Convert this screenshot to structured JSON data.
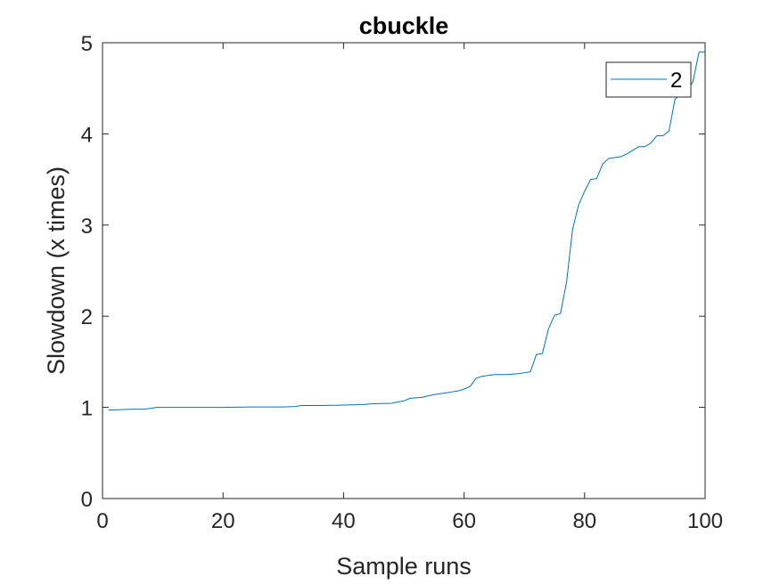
{
  "chart_data": {
    "type": "line",
    "title": "cbuckle",
    "xlabel": "Sample runs",
    "ylabel": "Slowdown (x times)",
    "xlim": [
      0,
      100
    ],
    "ylim": [
      0,
      5
    ],
    "xticks": [
      "0",
      "20",
      "40",
      "60",
      "80",
      "100"
    ],
    "yticks": [
      "0",
      "1",
      "2",
      "3",
      "4",
      "5"
    ],
    "grid": false,
    "legend_position": "top-right",
    "series": [
      {
        "name": "2",
        "color": "#0072BD",
        "points": [
          [
            1,
            0.97
          ],
          [
            3,
            0.975
          ],
          [
            5,
            0.98
          ],
          [
            7,
            0.98
          ],
          [
            8,
            0.99
          ],
          [
            9,
            1.0
          ],
          [
            12,
            1.0
          ],
          [
            16,
            1.0
          ],
          [
            20,
            1.0
          ],
          [
            25,
            1.005
          ],
          [
            30,
            1.005
          ],
          [
            32,
            1.01
          ],
          [
            33,
            1.02
          ],
          [
            36,
            1.02
          ],
          [
            40,
            1.025
          ],
          [
            43,
            1.03
          ],
          [
            45,
            1.04
          ],
          [
            48,
            1.045
          ],
          [
            49,
            1.06
          ],
          [
            50,
            1.07
          ],
          [
            51,
            1.1
          ],
          [
            53,
            1.11
          ],
          [
            55,
            1.14
          ],
          [
            56,
            1.15
          ],
          [
            57,
            1.16
          ],
          [
            58,
            1.17
          ],
          [
            59,
            1.18
          ],
          [
            60,
            1.2
          ],
          [
            61,
            1.23
          ],
          [
            62,
            1.32
          ],
          [
            63,
            1.34
          ],
          [
            64,
            1.35
          ],
          [
            65,
            1.36
          ],
          [
            67,
            1.36
          ],
          [
            69,
            1.37
          ],
          [
            70,
            1.38
          ],
          [
            71,
            1.39
          ],
          [
            72,
            1.58
          ],
          [
            73,
            1.59
          ],
          [
            74,
            1.86
          ],
          [
            75,
            2.01
          ],
          [
            76,
            2.03
          ],
          [
            77,
            2.37
          ],
          [
            78,
            2.95
          ],
          [
            79,
            3.22
          ],
          [
            80,
            3.37
          ],
          [
            81,
            3.5
          ],
          [
            82,
            3.51
          ],
          [
            83,
            3.67
          ],
          [
            84,
            3.73
          ],
          [
            85,
            3.74
          ],
          [
            86,
            3.75
          ],
          [
            87,
            3.78
          ],
          [
            88,
            3.82
          ],
          [
            89,
            3.86
          ],
          [
            90,
            3.86
          ],
          [
            91,
            3.9
          ],
          [
            92,
            3.98
          ],
          [
            93,
            3.98
          ],
          [
            94,
            4.03
          ],
          [
            95,
            4.38
          ],
          [
            96,
            4.44
          ],
          [
            97,
            4.46
          ],
          [
            98,
            4.58
          ],
          [
            99,
            4.9
          ],
          [
            100,
            4.9
          ]
        ]
      }
    ]
  }
}
